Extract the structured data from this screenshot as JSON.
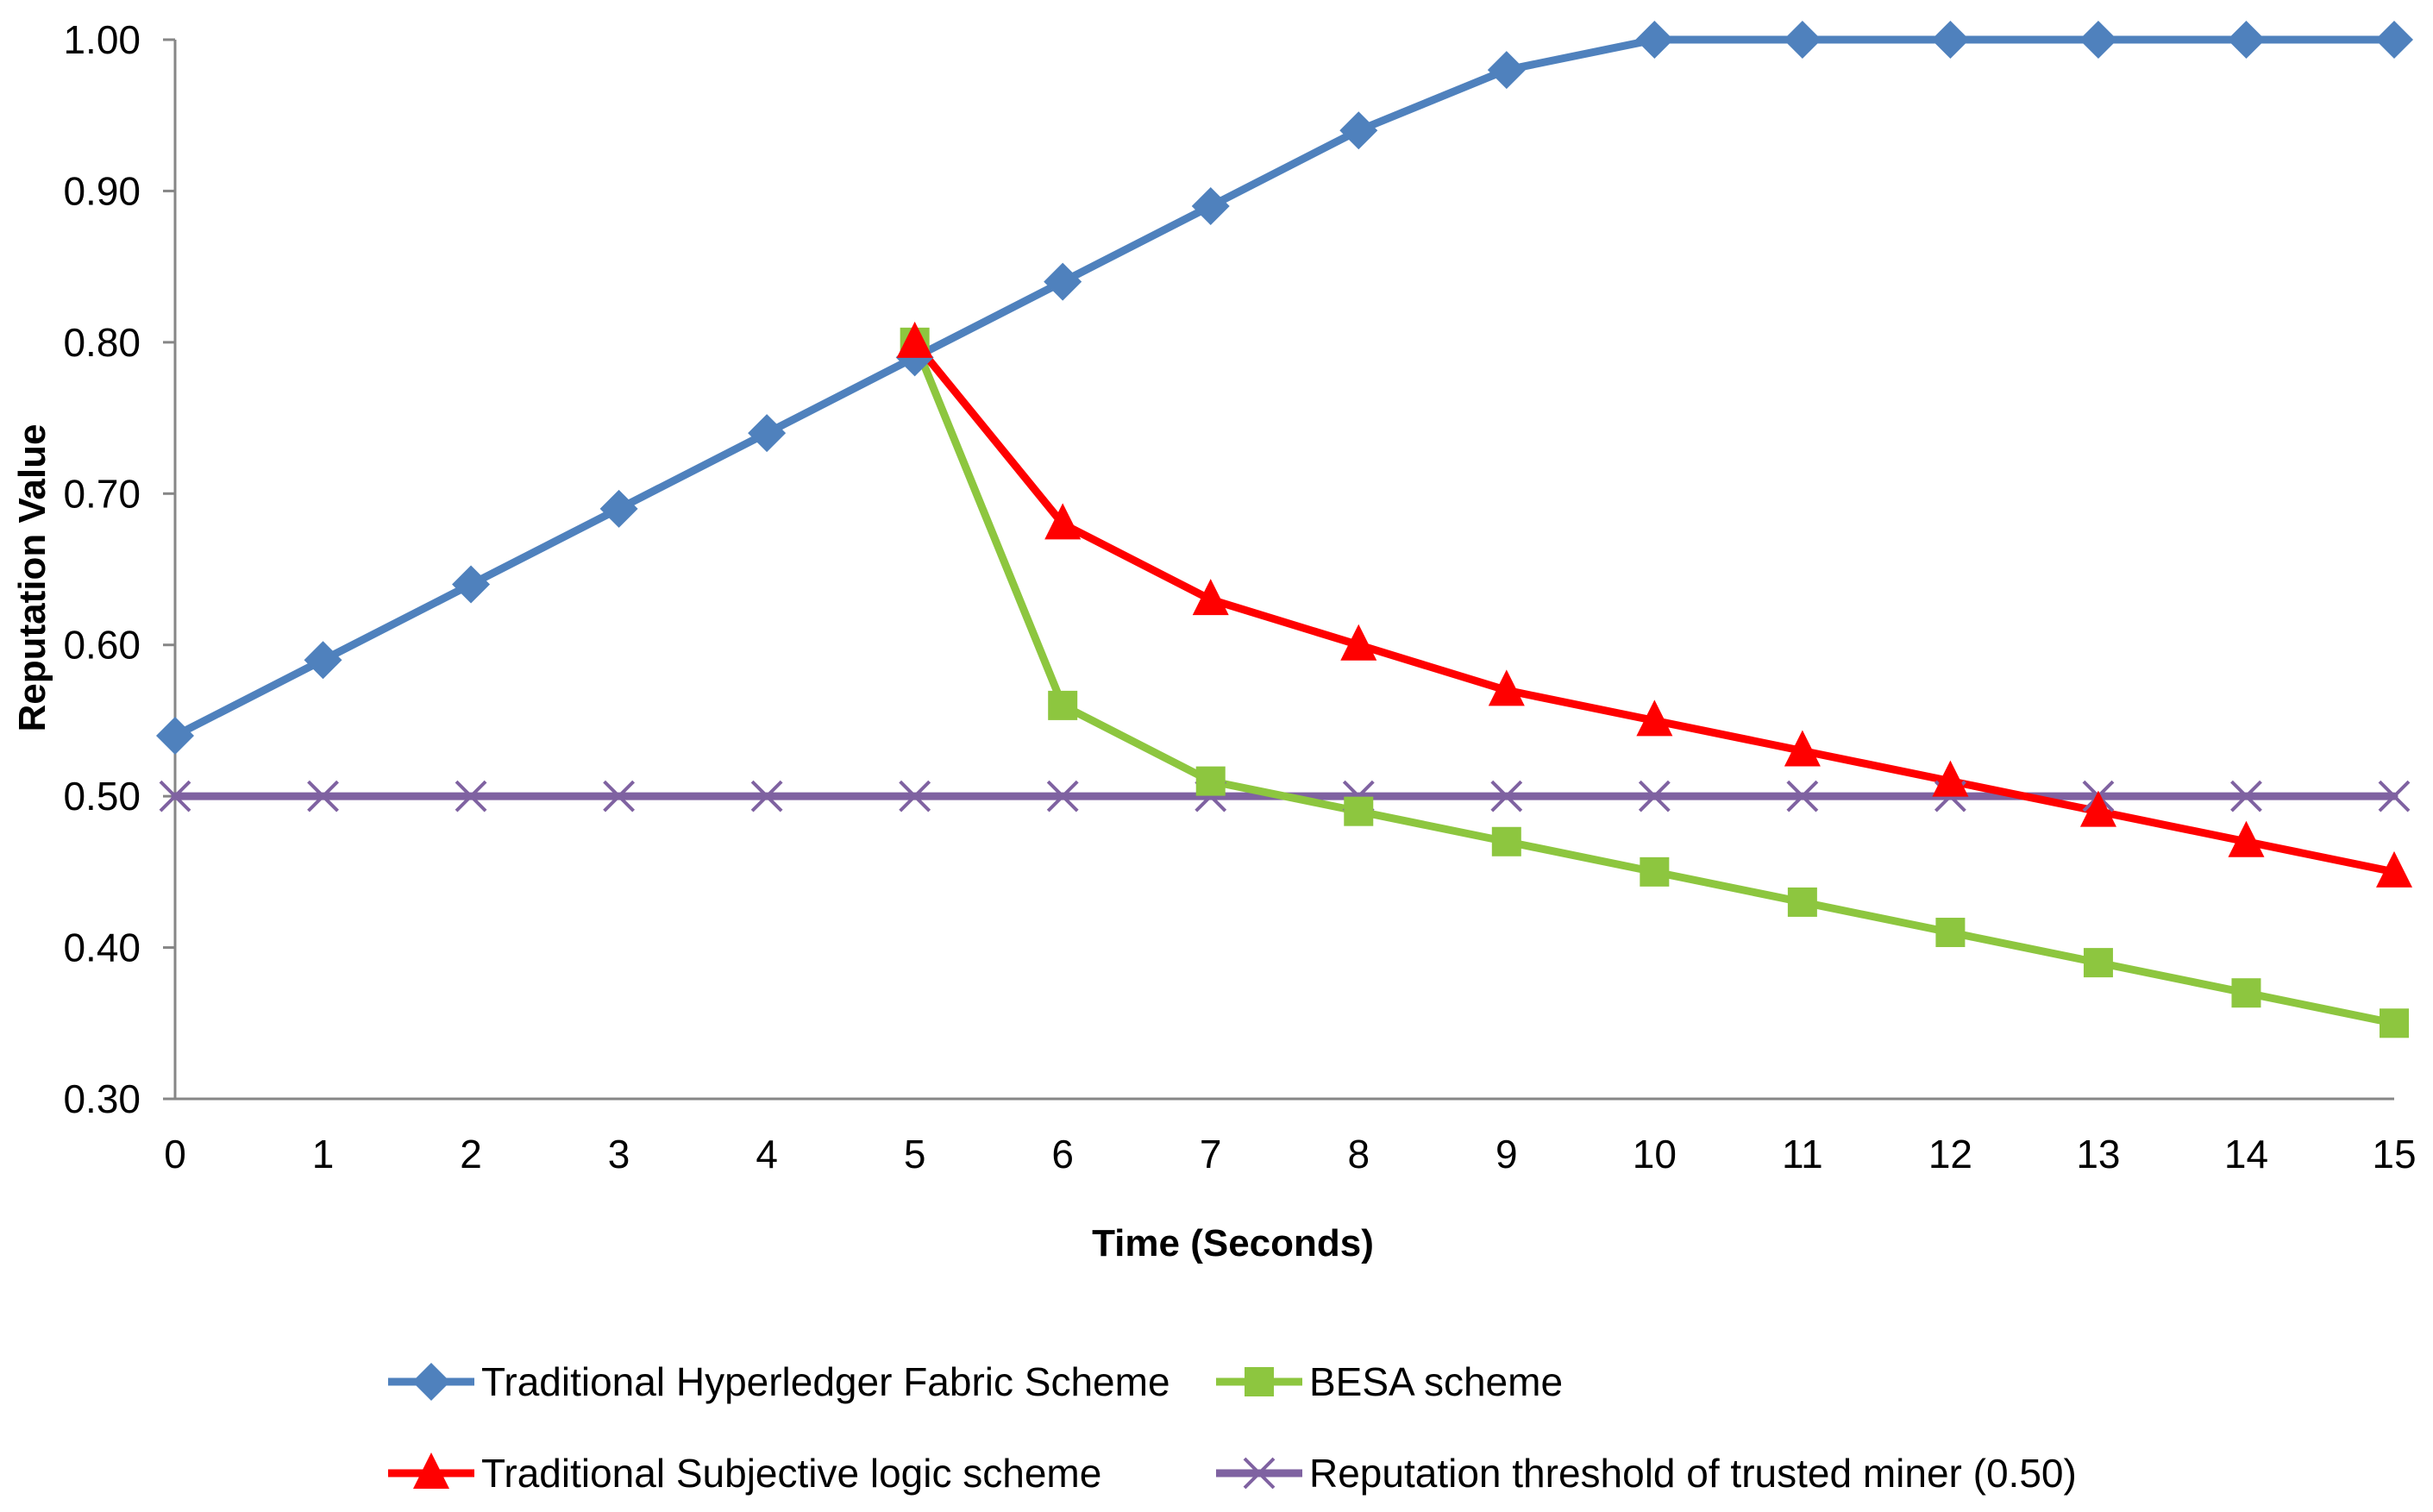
{
  "chart_data": {
    "type": "line",
    "title": "",
    "xlabel": "Time (Seconds)",
    "ylabel": "Reputation Value",
    "x": [
      0,
      1,
      2,
      3,
      4,
      5,
      6,
      7,
      8,
      9,
      10,
      11,
      12,
      13,
      14,
      15
    ],
    "x_tick_labels": [
      "0",
      "1",
      "2",
      "3",
      "4",
      "5",
      "6",
      "7",
      "8",
      "9",
      "10",
      "11",
      "12",
      "13",
      "14",
      "15"
    ],
    "ylim": [
      0.3,
      1.0
    ],
    "y_ticks": [
      0.3,
      0.4,
      0.5,
      0.6,
      0.7,
      0.8,
      0.9,
      1.0
    ],
    "y_tick_labels": [
      "0.30",
      "0.40",
      "0.50",
      "0.60",
      "0.70",
      "0.80",
      "0.90",
      "1.00"
    ],
    "grid": false,
    "legend_position": "bottom",
    "series": [
      {
        "name": "Traditional Hyperledger Fabric Scheme",
        "color": "#4F81BD",
        "marker": "diamond",
        "x": [
          0,
          1,
          2,
          3,
          4,
          5,
          6,
          7,
          8,
          9,
          10,
          11,
          12,
          13,
          14,
          15
        ],
        "values": [
          0.54,
          0.59,
          0.64,
          0.69,
          0.74,
          0.79,
          0.84,
          0.89,
          0.94,
          0.98,
          1.0,
          1.0,
          1.0,
          1.0,
          1.0,
          1.0
        ]
      },
      {
        "name": "BESA scheme",
        "color": "#8DC63F",
        "marker": "square",
        "x": [
          5,
          6,
          7,
          8,
          9,
          10,
          11,
          12,
          13,
          14,
          15
        ],
        "values": [
          0.8,
          0.56,
          0.51,
          0.49,
          0.47,
          0.45,
          0.43,
          0.41,
          0.39,
          0.37,
          0.35
        ]
      },
      {
        "name": "Traditional Subjective logic scheme",
        "color": "#FF0000",
        "marker": "triangle",
        "x": [
          5,
          6,
          7,
          8,
          9,
          10,
          11,
          12,
          13,
          14,
          15
        ],
        "values": [
          0.8,
          0.68,
          0.63,
          0.6,
          0.57,
          0.55,
          0.53,
          0.51,
          0.49,
          0.47,
          0.45
        ]
      },
      {
        "name": "Reputation threshold of trusted miner (0.50)",
        "color": "#7F62A1",
        "marker": "x",
        "x": [
          0,
          1,
          2,
          3,
          4,
          5,
          6,
          7,
          8,
          9,
          10,
          11,
          12,
          13,
          14,
          15
        ],
        "values": [
          0.5,
          0.5,
          0.5,
          0.5,
          0.5,
          0.5,
          0.5,
          0.5,
          0.5,
          0.5,
          0.5,
          0.5,
          0.5,
          0.5,
          0.5,
          0.5
        ]
      }
    ]
  }
}
